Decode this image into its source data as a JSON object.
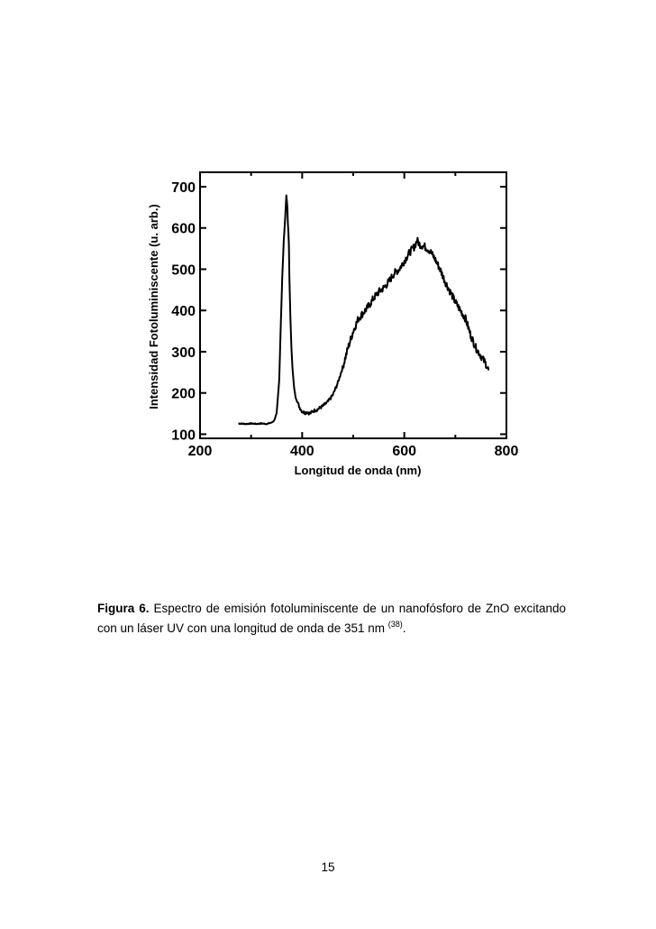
{
  "chart_data": {
    "type": "line",
    "xlabel": "Longitud de onda  (nm)",
    "ylabel": "Intensidad Fotoluminiscente (u. arb.)",
    "xlim": [
      200,
      800
    ],
    "ylim": [
      90,
      735
    ],
    "x_ticks": [
      200,
      400,
      600,
      800
    ],
    "y_ticks": [
      100,
      200,
      300,
      400,
      500,
      600,
      700
    ],
    "grid": false,
    "series": [
      {
        "x": [
          275,
          290,
          300,
          310,
          320,
          330,
          340,
          345,
          350,
          355,
          358,
          361,
          364,
          367,
          369,
          371,
          372,
          373,
          374,
          375,
          377,
          379,
          381,
          384,
          387,
          390,
          395,
          400,
          405,
          410,
          415,
          420,
          425,
          430,
          440,
          450,
          460,
          470,
          480,
          490,
          500,
          510,
          520,
          530,
          540,
          550,
          560,
          570,
          580,
          590,
          600,
          610,
          620,
          625,
          630,
          640,
          650,
          660,
          670,
          680,
          690,
          700,
          710,
          720,
          730,
          740,
          750,
          760,
          765
        ],
        "y": [
          126,
          125,
          126,
          125,
          126,
          125,
          128,
          133,
          150,
          230,
          360,
          480,
          570,
          630,
          680,
          650,
          610,
          590,
          560,
          480,
          380,
          310,
          260,
          215,
          190,
          180,
          165,
          155,
          152,
          154,
          150,
          155,
          158,
          160,
          168,
          178,
          195,
          225,
          265,
          310,
          350,
          380,
          395,
          410,
          430,
          445,
          455,
          470,
          490,
          500,
          520,
          540,
          555,
          570,
          560,
          555,
          545,
          525,
          500,
          470,
          445,
          420,
          400,
          380,
          340,
          310,
          290,
          270,
          255
        ]
      }
    ]
  },
  "caption": {
    "lead": "Figura 6.",
    "text": " Espectro de emisión fotoluminiscente de un nanofósforo de ZnO excitando con un láser UV con una longitud de onda de 351 nm ",
    "ref": "(38)",
    "end": "."
  },
  "page_number": "15"
}
